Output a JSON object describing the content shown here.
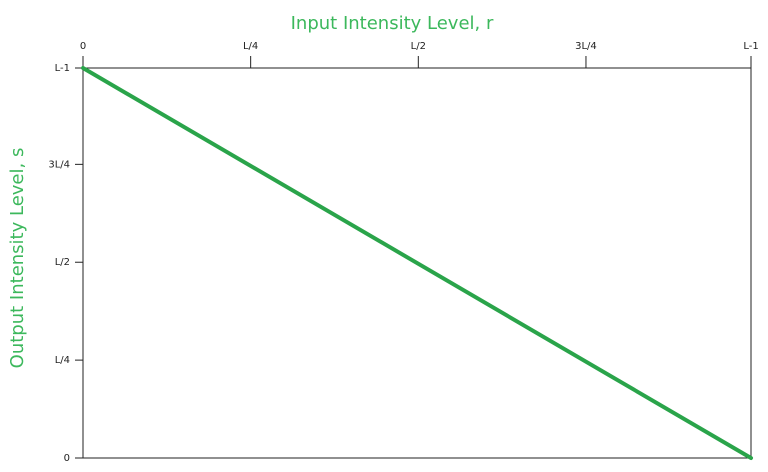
{
  "chart_data": {
    "type": "line",
    "xlabel": "Input Intensity Level, r",
    "ylabel": "Output Intensity Level, s",
    "x": [
      0,
      255
    ],
    "series": [
      {
        "color": "#2aa44a",
        "values": [
          255,
          0
        ]
      }
    ],
    "xlim": [
      0,
      255
    ],
    "ylim": [
      0,
      255
    ],
    "xticks": [
      0,
      {
        "value": 64,
        "label": "L/4"
      },
      {
        "value": 128,
        "label": "L/2"
      },
      {
        "value": 192,
        "label": "3L/4"
      },
      {
        "value": 255,
        "label": "L-1"
      }
    ],
    "yticks": [
      0,
      {
        "value": 64,
        "label": "L/4"
      },
      {
        "value": 128,
        "label": "L/2"
      },
      {
        "value": 192,
        "label": "3L/4"
      },
      {
        "value": 255,
        "label": "L-1"
      }
    ],
    "grid": false
  }
}
